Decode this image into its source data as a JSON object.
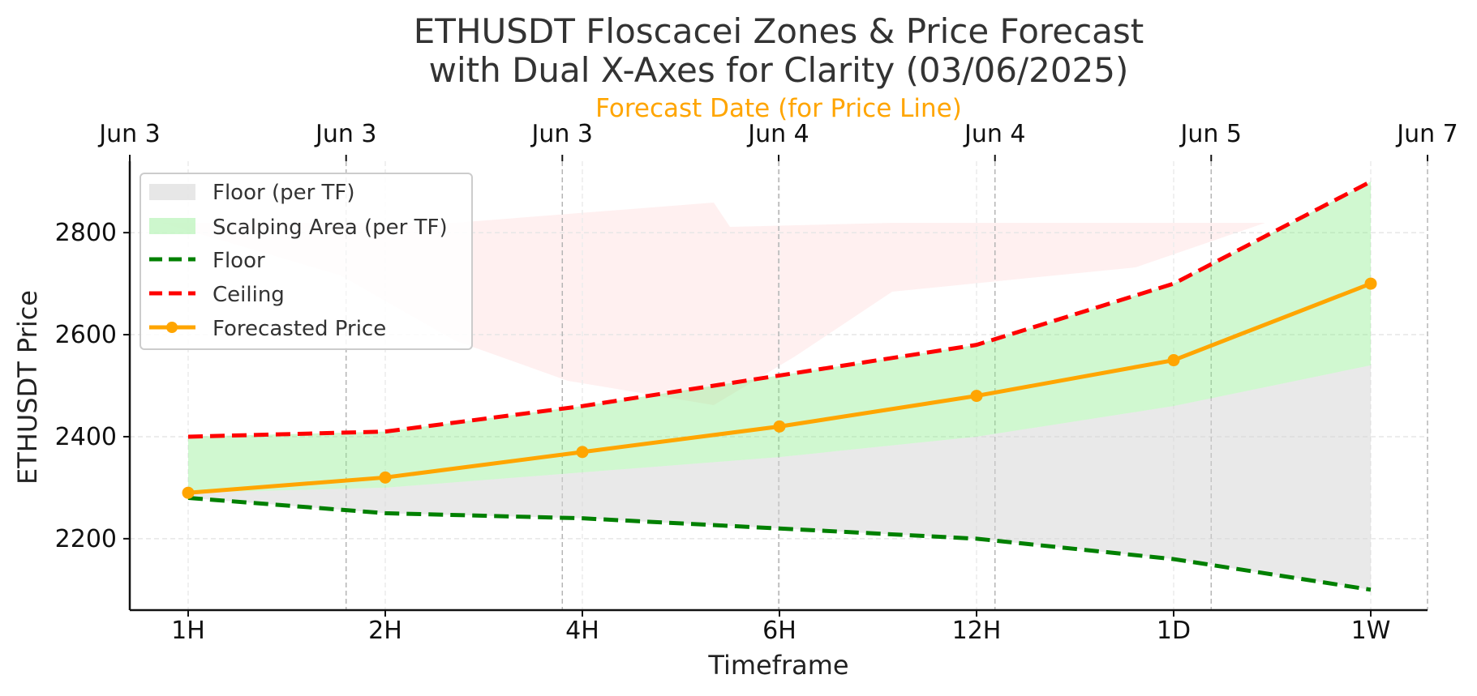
{
  "chart_data": {
    "type": "line",
    "title_line1": "ETHUSDT Floscacei Zones & Price Forecast",
    "title_line2": "with Dual X-Axes for Clarity (03/06/2025)",
    "top_axis_label": "Forecast Date (for Price Line)",
    "xlabel": "Timeframe",
    "ylabel": "ETHUSDT Price",
    "categories": [
      "1H",
      "2H",
      "4H",
      "6H",
      "12H",
      "1D",
      "1W"
    ],
    "top_ticks": [
      "Jun 3",
      "Jun 3",
      "Jun 3",
      "Jun 4",
      "Jun 4",
      "Jun 5",
      "Jun 7"
    ],
    "yticks": [
      2200,
      2400,
      2600,
      2800
    ],
    "ylim": [
      2060,
      2940
    ],
    "grid": true,
    "legend_position": "top-left",
    "series": [
      {
        "name": "Floor",
        "style": "dashed",
        "color": "#008000",
        "values": [
          2280,
          2250,
          2240,
          2220,
          2200,
          2160,
          2100
        ]
      },
      {
        "name": "Ceiling",
        "style": "dashed",
        "color": "#ff0000",
        "values": [
          2400,
          2410,
          2460,
          2520,
          2580,
          2700,
          2900
        ]
      },
      {
        "name": "Forecasted Price",
        "style": "solid-markers",
        "color": "#ffa500",
        "values": [
          2290,
          2320,
          2370,
          2420,
          2480,
          2550,
          2700
        ]
      }
    ],
    "areas": [
      {
        "name": "Floor (per TF)",
        "color": "#d3d3d3",
        "lower": [
          2280,
          2250,
          2240,
          2220,
          2200,
          2160,
          2100
        ],
        "upper": [
          2290,
          2300,
          2330,
          2360,
          2400,
          2460,
          2540
        ]
      },
      {
        "name": "Scalping Area (per TF)",
        "color": "#90ee90",
        "lower": [
          2290,
          2300,
          2330,
          2360,
          2400,
          2460,
          2540
        ],
        "upper": [
          2400,
          2410,
          2460,
          2520,
          2580,
          2700,
          2900
        ]
      }
    ],
    "legend": [
      "Floor (per TF)",
      "Scalping Area (per TF)",
      "Floor",
      "Ceiling",
      "Forecasted Price"
    ]
  }
}
